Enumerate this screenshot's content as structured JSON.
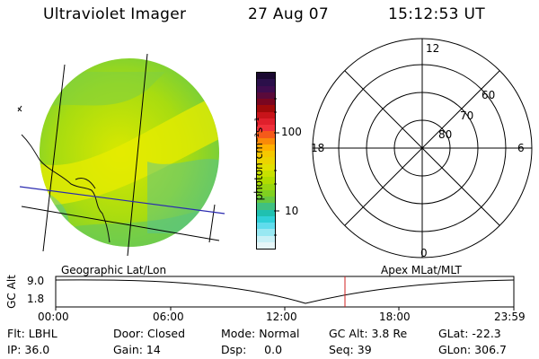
{
  "header": {
    "instrument": "Ultraviolet Imager",
    "date": "27 Aug 07",
    "time": "15:12:53 UT"
  },
  "colorbar": {
    "label": "photon cm⁻²s⁻¹",
    "ticks": [
      "100",
      "10"
    ],
    "colors": [
      "#1a0830",
      "#2b0f4a",
      "#3f0c4e",
      "#5a0a3a",
      "#7a0620",
      "#a00a0a",
      "#c8141a",
      "#e0202c",
      "#f0303a",
      "#f55a1a",
      "#fa8a08",
      "#ffb000",
      "#f5c800",
      "#ecd400",
      "#e0e000",
      "#c8e000",
      "#b0dc00",
      "#98d610",
      "#80d020",
      "#66c840",
      "#40c080",
      "#20c0b0",
      "#30d0d8",
      "#60dcec",
      "#98e8f2",
      "#c8f0f6",
      "#e6f6f8"
    ]
  },
  "polar": {
    "labels": [
      "12",
      "60",
      "70",
      "80",
      "18",
      "6",
      "0"
    ]
  },
  "track": {
    "left_label": "Geographic Lat/Lon",
    "right_label": "Apex MLat/MLT",
    "axis_label": "GC Alt",
    "y_ticks": [
      "9.0",
      "1.8"
    ],
    "x_ticks": [
      "00:00",
      "06:00",
      "12:00",
      "18:00",
      "23:59"
    ]
  },
  "info": {
    "row1": [
      "Flt: LBHL",
      "Door: Closed",
      "Mode: Normal",
      "GC Alt: 3.8 Re",
      "GLat: -22.3"
    ],
    "row2": [
      "IP: 36.0",
      "Gain: 14",
      "Dsp:     0.0",
      "Seq: 39",
      "GLon: 306.7"
    ]
  },
  "colors": {
    "grid": "#000000",
    "blue_line": "#2a2ab0",
    "marker": "#d02020"
  }
}
